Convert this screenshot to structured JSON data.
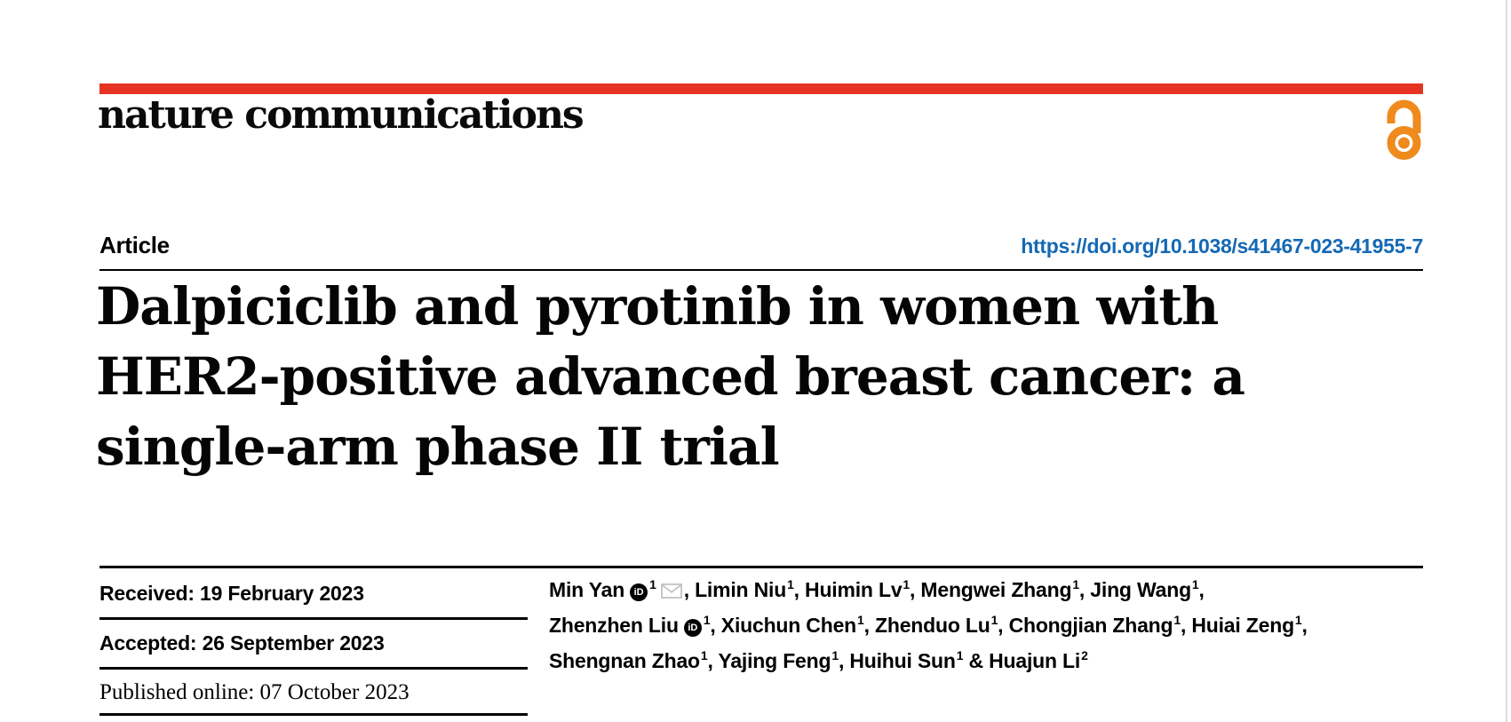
{
  "journal": {
    "name": "nature communications",
    "open_access_icon": "open-access-lock-icon"
  },
  "article": {
    "type_label": "Article",
    "doi": "https://doi.org/10.1038/s41467-023-41955-7",
    "title_lines": [
      "Dalpiciclib and pyrotinib in women with",
      "HER2-positive advanced breast cancer: a",
      "single-arm phase II trial"
    ]
  },
  "dates": {
    "received": "Received: 19 February 2023",
    "accepted": "Accepted: 26 September 2023",
    "published": "Published online: 07 October 2023"
  },
  "authors": {
    "orcid_icon_label": "iD",
    "lines": [
      [
        {
          "name": "Min Yan",
          "orcid": true,
          "sup": "1",
          "email": true,
          "sep": ", "
        },
        {
          "name": "Limin Niu",
          "sup": "1",
          "sep": ", "
        },
        {
          "name": "Huimin Lv",
          "sup": "1",
          "sep": ", "
        },
        {
          "name": "Mengwei Zhang",
          "sup": "1",
          "sep": ", "
        },
        {
          "name": "Jing Wang",
          "sup": "1",
          "sep": ","
        }
      ],
      [
        {
          "name": "Zhenzhen Liu",
          "orcid": true,
          "sup": "1",
          "sep": ", "
        },
        {
          "name": "Xiuchun Chen",
          "sup": "1",
          "sep": ", "
        },
        {
          "name": "Zhenduo Lu",
          "sup": "1",
          "sep": ", "
        },
        {
          "name": "Chongjian Zhang",
          "sup": "1",
          "sep": ", "
        },
        {
          "name": "Huiai Zeng",
          "sup": "1",
          "sep": ","
        }
      ],
      [
        {
          "name": "Shengnan Zhao",
          "sup": "1",
          "sep": ", "
        },
        {
          "name": "Yajing Feng",
          "sup": "1",
          "sep": ", "
        },
        {
          "name": "Huihui Sun",
          "sup": "1",
          "sep": " & "
        },
        {
          "name": "Huajun Li",
          "sup": "2",
          "sep": ""
        }
      ]
    ]
  },
  "colors": {
    "brand_red": "#e63323",
    "link_blue": "#1569b3",
    "open_access_orange": "#ef8a1d",
    "envelope_gray": "#c3c3c3"
  }
}
